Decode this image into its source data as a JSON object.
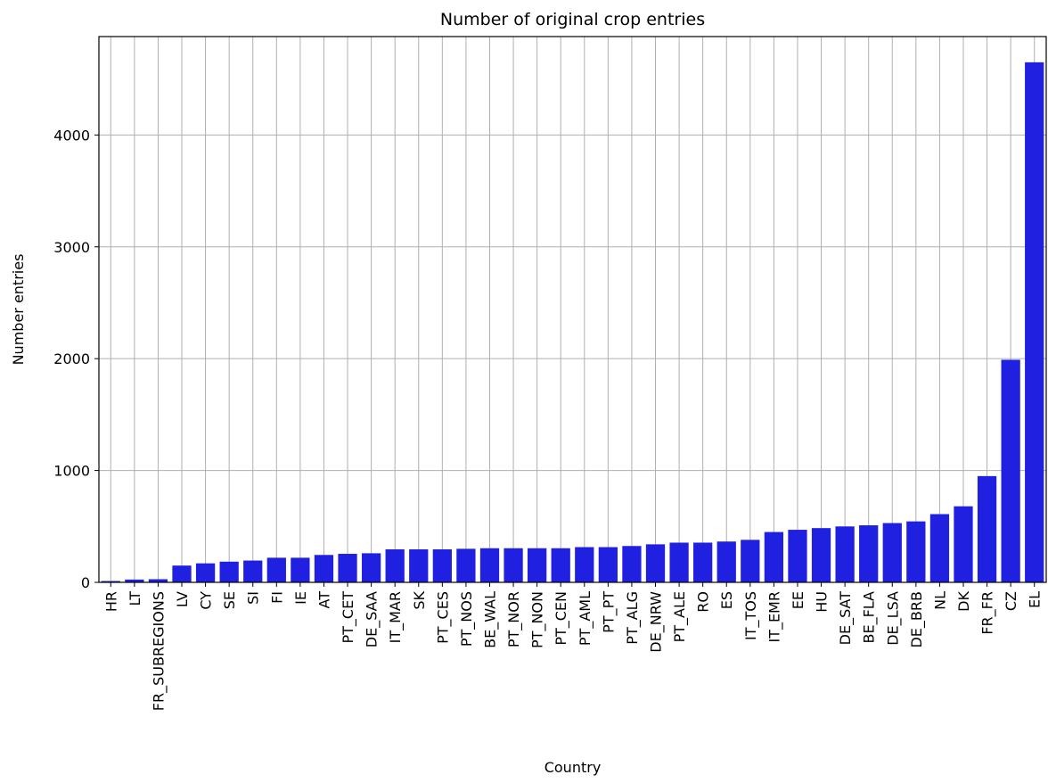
{
  "chart_data": {
    "type": "bar",
    "title": "Number of original crop entries",
    "xlabel": "Country",
    "ylabel": "Number entries",
    "categories": [
      "HR",
      "LT",
      "FR_SUBREGIONS",
      "LV",
      "CY",
      "SE",
      "SI",
      "FI",
      "IE",
      "AT",
      "PT_CET",
      "DE_SAA",
      "IT_MAR",
      "SK",
      "PT_CES",
      "PT_NOS",
      "BE_WAL",
      "PT_NOR",
      "PT_NON",
      "PT_CEN",
      "PT_AML",
      "PT_PT",
      "PT_ALG",
      "DE_NRW",
      "PT_ALE",
      "RO",
      "ES",
      "IT_TOS",
      "IT_EMR",
      "EE",
      "HU",
      "DE_SAT",
      "BE_FLA",
      "DE_LSA",
      "DE_BRB",
      "NL",
      "DK",
      "FR_FR",
      "CZ",
      "EL"
    ],
    "values": [
      12,
      25,
      28,
      150,
      170,
      185,
      195,
      220,
      220,
      245,
      255,
      260,
      295,
      295,
      295,
      300,
      305,
      305,
      305,
      305,
      315,
      315,
      325,
      340,
      355,
      355,
      365,
      380,
      450,
      470,
      485,
      500,
      510,
      530,
      545,
      610,
      680,
      950,
      1990,
      4650
    ],
    "ylim": [
      0,
      4880
    ],
    "yticks": [
      0,
      1000,
      2000,
      3000,
      4000
    ],
    "grid": true,
    "bar_color": "#2020e0"
  }
}
